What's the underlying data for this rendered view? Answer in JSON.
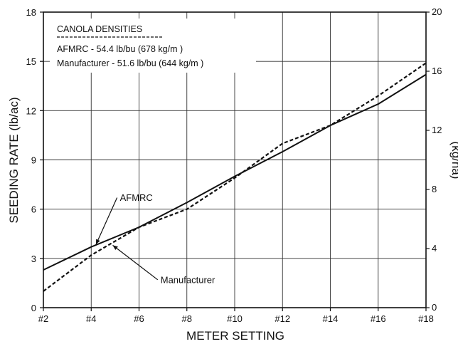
{
  "chart_data": {
    "type": "line",
    "xlabel": "METER SETTING",
    "ylabel": "SEEDING RATE (lb/ac)",
    "y2label": "(kg/ha)",
    "x_categories": [
      "#2",
      "#4",
      "#6",
      "#8",
      "#10",
      "#12",
      "#14",
      "#16",
      "#18"
    ],
    "x_numeric": [
      2,
      4,
      6,
      8,
      10,
      12,
      14,
      16,
      18
    ],
    "xlim": [
      2,
      18
    ],
    "ylim": [
      0,
      18
    ],
    "y_ticks": [
      0,
      3,
      6,
      9,
      12,
      15,
      18
    ],
    "y2lim": [
      0,
      20
    ],
    "y2_ticks": [
      0,
      4,
      8,
      12,
      16,
      20
    ],
    "grid": true,
    "legend": {
      "title": "CANOLA DENSITIES",
      "entries": [
        "AFMRC - 54.4 lb/bu (678 kg/m )",
        "Manufacturer - 51.6 lb/bu (644 kg/m )"
      ],
      "placement": "top-left"
    },
    "series": [
      {
        "name": "AFMRC",
        "style": "solid",
        "x": [
          2,
          4,
          6,
          8,
          10,
          12,
          14,
          16,
          18
        ],
        "y": [
          2.3,
          3.7,
          4.9,
          6.4,
          8.0,
          9.5,
          11.1,
          12.4,
          14.2
        ]
      },
      {
        "name": "Manufacturer",
        "style": "dashed",
        "x": [
          2,
          4,
          6,
          8,
          10,
          12,
          14,
          16,
          18
        ],
        "y": [
          1.0,
          3.2,
          4.9,
          6.0,
          7.9,
          10.0,
          11.1,
          12.9,
          14.9
        ]
      }
    ],
    "annotations": [
      {
        "text": "AFMRC",
        "x": 4.2,
        "y": 3.85,
        "label_x": 5.2,
        "label_y": 6.7
      },
      {
        "text": "Manufacturer",
        "x": 4.9,
        "y": 3.8,
        "label_x": 6.9,
        "label_y": 1.7
      }
    ],
    "colors": {
      "line": "#111111",
      "grid": "#333333",
      "background": "#ffffff"
    }
  }
}
